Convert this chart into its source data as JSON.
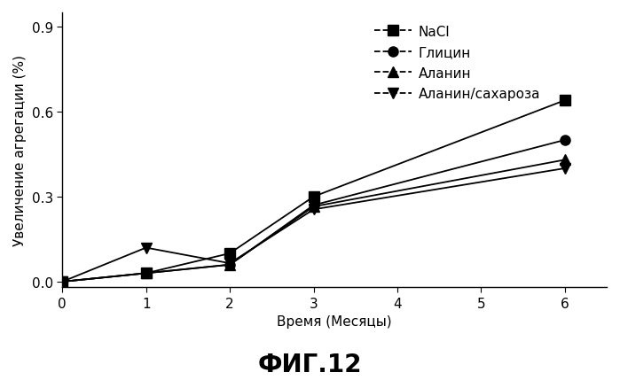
{
  "x": [
    0,
    1,
    2,
    3,
    6
  ],
  "series": {
    "NaCl": [
      0.0,
      0.03,
      0.1,
      0.3,
      0.64
    ],
    "Глицин": [
      0.0,
      0.03,
      0.06,
      0.27,
      0.5
    ],
    "Аланин": [
      0.0,
      0.03,
      0.06,
      0.265,
      0.43
    ],
    "Аланин/сахароза": [
      0.0,
      0.12,
      0.065,
      0.255,
      0.4
    ]
  },
  "markers": [
    "s",
    "o",
    "^",
    "v"
  ],
  "line_color": "#000000",
  "markersize": 8,
  "linewidth": 1.3,
  "xlabel": "Время (Месяцы)",
  "ylabel": "Увеличение агрегации (%)",
  "xlim": [
    0,
    6.5
  ],
  "ylim": [
    -0.02,
    0.95
  ],
  "xticks": [
    0,
    1,
    2,
    3,
    4,
    5,
    6
  ],
  "yticks": [
    0.0,
    0.3,
    0.6,
    0.9
  ],
  "title": "ФИГ.12",
  "title_fontsize": 20,
  "axis_label_fontsize": 11,
  "tick_fontsize": 11,
  "legend_fontsize": 11,
  "background_color": "#ffffff"
}
